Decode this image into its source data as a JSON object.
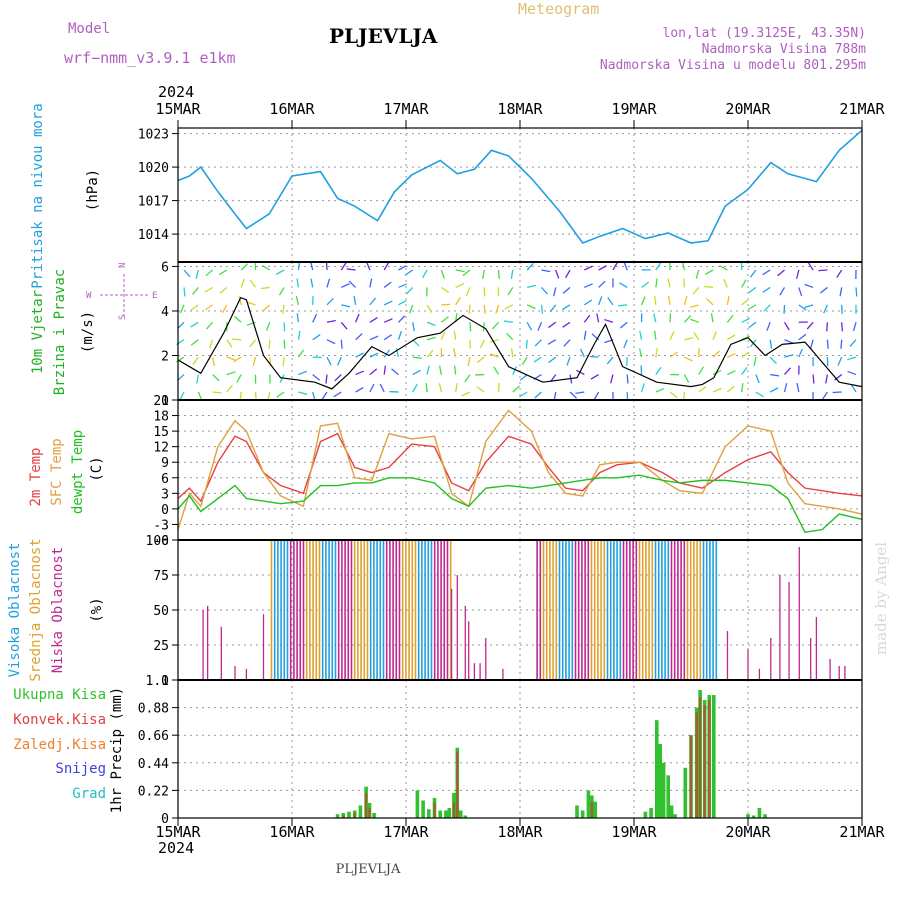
{
  "header": {
    "model_label": "Model",
    "model_name": "wrf−nmm_v3.9.1  e1km",
    "station": "PLJEVLJA",
    "title": "Meteogram",
    "coords": "lon,lat (19.3125E, 43.35N)",
    "elevation": "Nadmorska Visina 788m",
    "model_elevation": "Nadmorska Visina u modelu 801.295m",
    "footer": "PLJEVLJA",
    "watermark": "made by Angel"
  },
  "axis": {
    "year": "2024",
    "dates": [
      "15MAR",
      "16MAR",
      "17MAR",
      "18MAR",
      "19MAR",
      "20MAR",
      "21MAR"
    ]
  },
  "colors": {
    "pressure": "#20a0e0",
    "temp2m": "#e84040",
    "sfc": "#e0a040",
    "dewpt": "#20c020",
    "high_cloud": "#20a0e0",
    "mid_cloud": "#e0a030",
    "low_cloud": "#c02890",
    "rain_total": "#30c030",
    "rain_conv": "#e04040",
    "wind_label": "#20b020",
    "compass": "#b060c0"
  },
  "panels": {
    "pressure": {
      "label": "Pritisak na nivou mora",
      "unit": "(hPa)"
    },
    "wind": {
      "label1": "10m Vjetar",
      "label2": "Brzina i Pravac",
      "unit": "(m/s)",
      "compass_n": "N",
      "compass_s": "S",
      "compass_w": "W",
      "compass_e": "E"
    },
    "temp": {
      "label1": "2m Temp",
      "label2": "SFC Temp",
      "label3": "dewpt Temp",
      "unit": "(C)"
    },
    "cloud": {
      "label1": "Visoka Oblacnost",
      "label2": "Srednja Oblacnost",
      "label3": "Niska Oblacnost",
      "unit": "(%)"
    },
    "precip": {
      "legend": [
        "Ukupna Kisa",
        "Konvek.Kisa",
        "Zaledj.Kisa",
        "Snijeg",
        "Grad"
      ],
      "unit": "1hr Precip (mm)"
    }
  },
  "chart_data": [
    {
      "type": "line",
      "title": "",
      "ylabel": "Pritisak na nivou mora (hPa)",
      "ylim": [
        1011.5,
        1023.5
      ],
      "yticks": [
        1014,
        1017,
        1020,
        1023
      ],
      "x_days": [
        0,
        0.1,
        0.2,
        0.35,
        0.5,
        0.6,
        0.8,
        1.0,
        1.25,
        1.4,
        1.55,
        1.75,
        1.9,
        2.05,
        2.3,
        2.45,
        2.6,
        2.75,
        2.9,
        3.1,
        3.35,
        3.55,
        3.7,
        3.9,
        4.1,
        4.3,
        4.5,
        4.65,
        4.8,
        5.0,
        5.2,
        5.35,
        5.6,
        5.8,
        6.0
      ],
      "series": [
        {
          "name": "Pritisak na nivou mora",
          "values": [
            1018.8,
            1019.2,
            1020.0,
            1017.8,
            1015.8,
            1014.5,
            1015.8,
            1019.2,
            1019.6,
            1017.2,
            1016.5,
            1015.2,
            1017.8,
            1019.3,
            1020.6,
            1019.4,
            1019.8,
            1021.5,
            1021.0,
            1019.0,
            1016.0,
            1013.2,
            1013.8,
            1014.5,
            1013.6,
            1014.1,
            1013.2,
            1013.4,
            1016.5,
            1018.0,
            1020.4,
            1019.4,
            1018.7,
            1021.5,
            1023.3
          ]
        }
      ]
    },
    {
      "type": "line",
      "title": "",
      "ylabel": "10m Vjetar Brzina i Pravac (m/s)",
      "ylim": [
        0,
        6.2
      ],
      "yticks": [
        0,
        2,
        4,
        6
      ],
      "x_days": [
        0,
        0.2,
        0.4,
        0.55,
        0.6,
        0.75,
        0.9,
        1.2,
        1.35,
        1.5,
        1.7,
        1.85,
        2.1,
        2.3,
        2.5,
        2.7,
        2.9,
        3.2,
        3.5,
        3.65,
        3.75,
        3.9,
        4.2,
        4.5,
        4.6,
        4.7,
        4.85,
        5.0,
        5.15,
        5.3,
        5.5,
        5.8,
        6.0
      ],
      "series": [
        {
          "name": "10m Vjetar",
          "values": [
            1.8,
            1.2,
            3.0,
            4.6,
            4.5,
            2.0,
            1.0,
            0.8,
            0.5,
            1.2,
            2.4,
            2.0,
            2.8,
            3.0,
            3.8,
            3.2,
            1.5,
            0.8,
            1.0,
            2.5,
            3.4,
            1.5,
            0.8,
            0.6,
            0.7,
            1.0,
            2.5,
            2.8,
            2.0,
            2.5,
            2.6,
            0.8,
            0.6
          ]
        }
      ]
    },
    {
      "type": "line",
      "title": "",
      "ylabel": "(C)",
      "ylim": [
        -6,
        21
      ],
      "yticks": [
        -6,
        -3,
        0,
        3,
        6,
        9,
        12,
        15,
        18,
        21
      ],
      "x_days": [
        0,
        0.1,
        0.2,
        0.35,
        0.5,
        0.6,
        0.75,
        0.9,
        1.1,
        1.25,
        1.4,
        1.55,
        1.7,
        1.85,
        2.05,
        2.25,
        2.4,
        2.55,
        2.7,
        2.9,
        3.1,
        3.25,
        3.4,
        3.55,
        3.7,
        3.85,
        4.05,
        4.25,
        4.4,
        4.6,
        4.8,
        5.0,
        5.2,
        5.35,
        5.5,
        5.65,
        5.8,
        6.0
      ],
      "series": [
        {
          "name": "2m Temp",
          "values": [
            2.0,
            4.0,
            1.5,
            9.0,
            14.0,
            13.0,
            7.0,
            4.5,
            3.0,
            13.0,
            14.5,
            8.0,
            7.0,
            8.0,
            12.5,
            12.0,
            5.0,
            3.5,
            9.0,
            14.0,
            12.5,
            8.0,
            4.0,
            3.5,
            7.0,
            8.5,
            9.0,
            7.0,
            5.0,
            4.0,
            7.0,
            9.5,
            11.0,
            7.0,
            4.0,
            3.5,
            3.0,
            2.5
          ]
        },
        {
          "name": "SFC Temp",
          "values": [
            -4.0,
            3.0,
            0.5,
            12.0,
            17.0,
            15.0,
            7.0,
            2.5,
            0.5,
            16.0,
            16.5,
            6.0,
            5.5,
            14.5,
            13.5,
            14.0,
            3.0,
            0.5,
            13.0,
            19.0,
            15.0,
            7.0,
            3.0,
            2.5,
            8.5,
            9.0,
            9.0,
            5.5,
            3.5,
            3.0,
            12.0,
            16.0,
            15.0,
            5.0,
            1.0,
            0.5,
            0.0,
            -1.0
          ]
        },
        {
          "name": "dewpt Temp",
          "values": [
            0.0,
            2.5,
            -0.5,
            2.0,
            4.5,
            2.0,
            1.5,
            1.0,
            1.5,
            4.5,
            4.5,
            5.0,
            5.0,
            6.0,
            6.0,
            5.0,
            2.0,
            0.5,
            4.0,
            4.5,
            4.0,
            4.5,
            5.0,
            5.5,
            6.0,
            6.0,
            6.5,
            5.5,
            5.0,
            5.5,
            5.5,
            5.0,
            4.5,
            2.0,
            -4.5,
            -4.0,
            -1.0,
            -2.0
          ]
        }
      ]
    },
    {
      "type": "bar",
      "title": "",
      "ylabel": "(%)",
      "ylim": [
        0,
        100
      ],
      "yticks": [
        0,
        25,
        50,
        75,
        100
      ],
      "series": [
        {
          "name": "Visoka Oblacnost",
          "values": [
            65,
            75,
            100
          ]
        },
        {
          "name": "Srednja Oblacnost",
          "values": [
            100,
            100,
            100
          ]
        },
        {
          "name": "Niska Oblacnost",
          "values": [
            53,
            100,
            100,
            100,
            80,
            60,
            100
          ]
        }
      ]
    },
    {
      "type": "bar",
      "title": "",
      "ylabel": "1hr Precip (mm)",
      "ylim": [
        0,
        1.1
      ],
      "yticks": [
        0,
        0.22,
        0.44,
        0.66,
        0.88,
        1.1
      ],
      "x_days": [
        1.4,
        1.45,
        1.5,
        1.55,
        1.6,
        1.65,
        1.68,
        1.72,
        2.1,
        2.15,
        2.2,
        2.25,
        2.3,
        2.35,
        2.38,
        2.42,
        2.45,
        2.48,
        2.52,
        3.5,
        3.55,
        3.6,
        3.63,
        3.66,
        4.1,
        4.15,
        4.2,
        4.23,
        4.26,
        4.3,
        4.33,
        4.36,
        4.45,
        4.5,
        4.55,
        4.58,
        4.62,
        4.66,
        4.7,
        5.0,
        5.05,
        5.1,
        5.15
      ],
      "series": [
        {
          "name": "Ukupna Kisa",
          "values": [
            0.03,
            0.04,
            0.05,
            0.06,
            0.1,
            0.25,
            0.12,
            0.04,
            0.22,
            0.14,
            0.07,
            0.16,
            0.06,
            0.06,
            0.08,
            0.2,
            0.56,
            0.06,
            0.02,
            0.1,
            0.06,
            0.22,
            0.18,
            0.13,
            0.05,
            0.08,
            0.78,
            0.59,
            0.44,
            0.34,
            0.1,
            0.03,
            0.4,
            0.66,
            0.88,
            1.02,
            0.94,
            0.98,
            0.98,
            0.03,
            0.02,
            0.08,
            0.03
          ]
        },
        {
          "name": "Konvek.Kisa",
          "values": [
            0.0,
            0.02,
            0.0,
            0.04,
            0.0,
            0.2,
            0.08,
            0.0,
            0.0,
            0.0,
            0.0,
            0.12,
            0.0,
            0.0,
            0.0,
            0.12,
            0.53,
            0.0,
            0.0,
            0.0,
            0.0,
            0.0,
            0.13,
            0.0,
            0.0,
            0.0,
            0.0,
            0.0,
            0.0,
            0.0,
            0.0,
            0.0,
            0.0,
            0.66,
            0.84,
            0.96,
            0.9,
            0.94,
            0.0,
            0.0,
            0.0,
            0.0,
            0.0
          ]
        }
      ]
    }
  ]
}
